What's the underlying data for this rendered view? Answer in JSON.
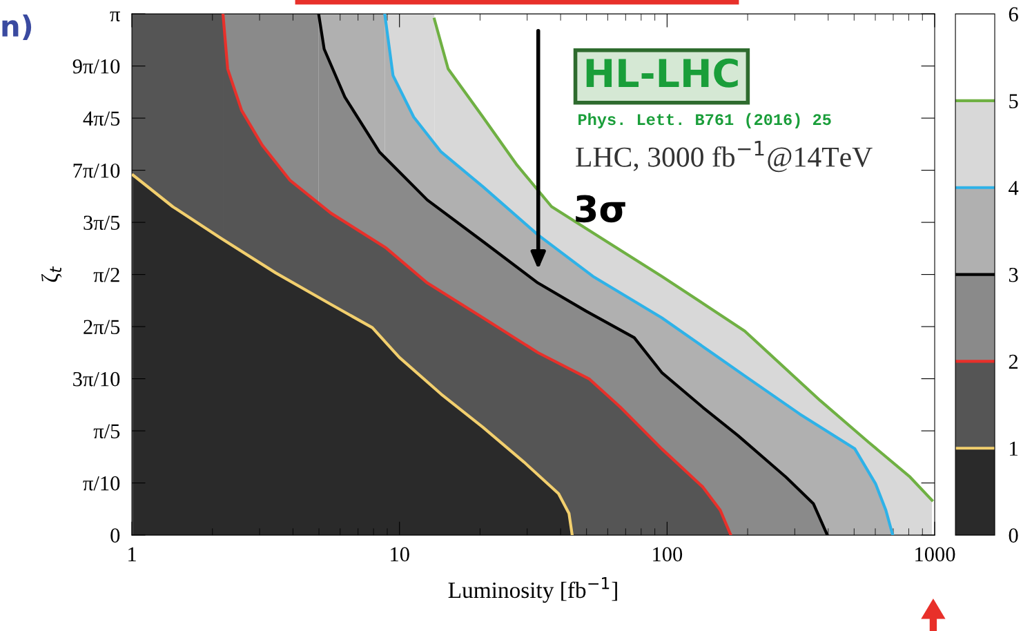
{
  "chart_data": {
    "type": "area",
    "xlabel": "Luminosity [fb$^{−1}$]",
    "ylabel": "ζ$_{t}$",
    "log": "x",
    "grid": false,
    "xlim": [
      1,
      1000
    ],
    "xticks": [
      1,
      10,
      100,
      1000
    ],
    "ylim": [
      0,
      3.1416
    ],
    "yticks": [
      0,
      {
        "value": 0.3142,
        "label": "π/10"
      },
      {
        "value": 0.6283,
        "label": "π/5"
      },
      {
        "value": 0.9425,
        "label": "3π/10"
      },
      {
        "value": 1.2566,
        "label": "2π/5"
      },
      {
        "value": 1.5708,
        "label": "π/2"
      },
      {
        "value": 1.885,
        "label": "3π/5"
      },
      {
        "value": 2.1991,
        "label": "7π/10"
      },
      {
        "value": 2.5133,
        "label": "4π/5"
      },
      {
        "value": 2.8274,
        "label": "9π/10"
      },
      {
        "value": 3.1416,
        "label": "π"
      }
    ],
    "clim": [
      0,
      6
    ],
    "cticks": [
      0,
      1,
      2,
      3,
      4,
      5,
      6
    ],
    "colors": [
      "#2a2a2a",
      "#555555",
      "#8a8a8a",
      "#b0b0b0",
      "#d8d8d8",
      "#ffffff"
    ],
    "bands": [
      {
        "axis": "x",
        "from": 1,
        "to": 2.19,
        "color": "#555555"
      },
      {
        "axis": "x",
        "from": 2.19,
        "to": 4.99,
        "color": "#8a8a8a"
      },
      {
        "axis": "x",
        "from": 4.99,
        "to": 8.81,
        "color": "#b0b0b0"
      },
      {
        "axis": "x",
        "from": 8.81,
        "to": 13.5,
        "color": "#d8d8d8"
      }
    ],
    "series": [
      {
        "color": "#f2cf6e",
        "x": [
          1.01,
          1.42,
          2.15,
          3.45,
          5.55,
          7.92,
          10.0,
          14.3,
          20.5,
          29.2,
          39.3,
          43.0,
          44.2
        ],
        "values": [
          2.17,
          1.98,
          1.79,
          1.58,
          1.39,
          1.25,
          1.07,
          0.85,
          0.65,
          0.44,
          0.25,
          0.13,
          0
        ]
      },
      {
        "color": "#e8302a",
        "x": [
          2.19,
          2.28,
          2.57,
          3.07,
          3.89,
          5.55,
          8.92,
          12.7,
          20.5,
          32.9,
          51.3,
          67.0,
          95.5,
          136,
          158,
          173
        ],
        "values": [
          3.14,
          2.81,
          2.56,
          2.35,
          2.14,
          1.94,
          1.73,
          1.52,
          1.31,
          1.1,
          0.94,
          0.77,
          0.52,
          0.29,
          0.15,
          0
        ]
      },
      {
        "color": "#000000",
        "x": [
          4.99,
          5.23,
          6.25,
          8.41,
          12.7,
          20.5,
          32.9,
          49.8,
          75.4,
          95.5,
          136,
          184,
          278,
          352,
          397
        ],
        "values": [
          3.14,
          2.93,
          2.64,
          2.31,
          2.02,
          1.77,
          1.52,
          1.35,
          1.19,
          0.98,
          0.77,
          0.6,
          0.35,
          0.19,
          0
        ]
      },
      {
        "color": "#2eb2e8",
        "x": [
          8.81,
          9.46,
          11.3,
          14.3,
          20.5,
          32.9,
          52.8,
          95.5,
          195,
          313,
          503,
          601,
          657,
          697
        ],
        "values": [
          3.14,
          2.77,
          2.52,
          2.31,
          2.1,
          1.81,
          1.56,
          1.31,
          0.96,
          0.73,
          0.52,
          0.31,
          0.15,
          0
        ]
      },
      {
        "color": "#6fb043",
        "x": [
          13.5,
          15.2,
          20.5,
          27.5,
          37.0,
          59.4,
          95.5,
          195,
          374,
          566,
          809,
          977
        ],
        "values": [
          3.11,
          2.81,
          2.52,
          2.23,
          1.98,
          1.77,
          1.56,
          1.23,
          0.81,
          0.56,
          0.35,
          0.21
        ]
      }
    ],
    "annotations": [
      "n)",
      "HL-LHC",
      "Phys. Lett. B761 (2016) 25",
      "LHC, 3000 fb$^{−1}$@14TeV",
      {
        "text": "3σ",
        "x": 33,
        "y": 1.52
      }
    ]
  }
}
